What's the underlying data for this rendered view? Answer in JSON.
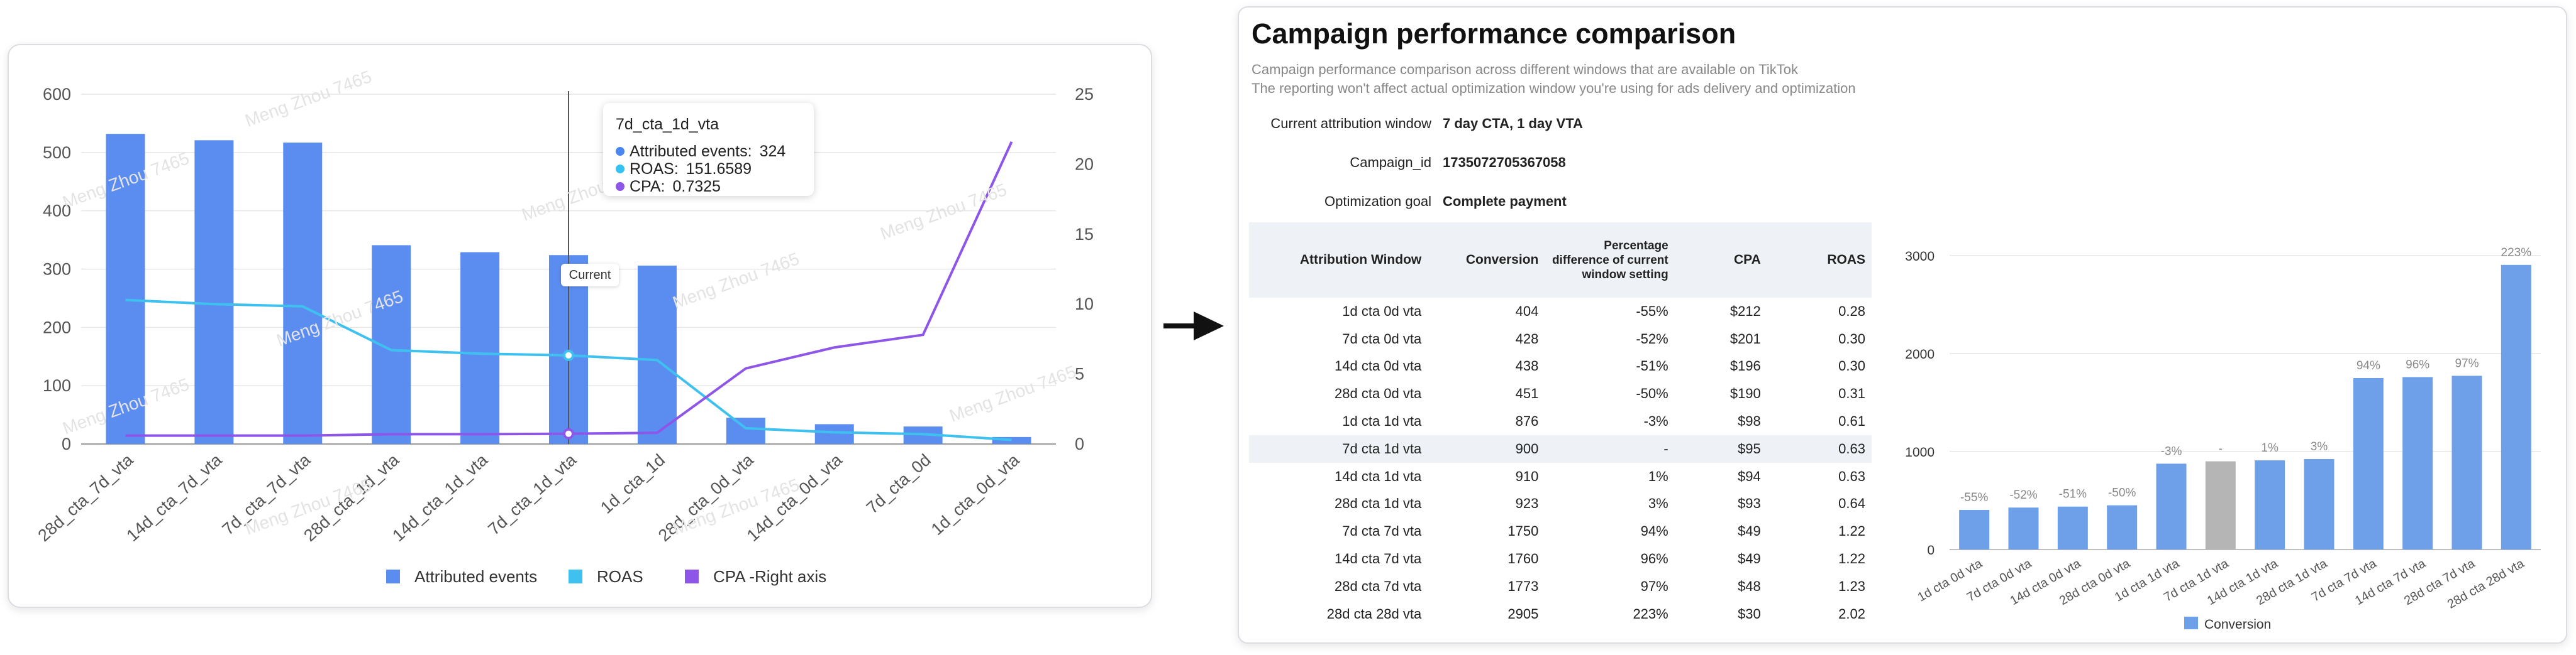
{
  "left_chart": {
    "tooltip": {
      "title": "7d_cta_1d_vta",
      "rows": [
        {
          "label": "Attributed events:",
          "value": "324",
          "color": "#4a86f0"
        },
        {
          "label": "ROAS:",
          "value": "151.6589",
          "color": "#36c2f0"
        },
        {
          "label": "CPA:",
          "value": "0.7325",
          "color": "#8e56e8"
        }
      ]
    },
    "current_label": "Current",
    "watermark": "Meng Zhou 7465",
    "legend": {
      "attributed": "Attributed events",
      "roas": "ROAS",
      "cpa": "CPA -Right axis"
    }
  },
  "right_panel": {
    "title": "Campaign performance comparison",
    "subtitle_line1": "Campaign performance comparison across different windows that are available on TikTok",
    "subtitle_line2": "The reporting won't affect actual optimization window you're using for ads delivery and optimization",
    "current_window_label": "Current attribution window",
    "current_window_value": "7 day CTA, 1 day VTA",
    "campaign_id_label": "Campaign_id",
    "campaign_id_value": "1735072705367058",
    "goal_label": "Optimization goal",
    "goal_value": "Complete payment",
    "table": {
      "headers": [
        "Attribution Window",
        "Conversion",
        "Percentage difference of current window setting",
        "CPA",
        "ROAS"
      ],
      "rows": [
        [
          "1d cta 0d vta",
          "404",
          "-55%",
          "$212",
          "0.28"
        ],
        [
          "7d cta 0d vta",
          "428",
          "-52%",
          "$201",
          "0.30"
        ],
        [
          "14d cta 0d vta",
          "438",
          "-51%",
          "$196",
          "0.30"
        ],
        [
          "28d cta 0d vta",
          "451",
          "-50%",
          "$190",
          "0.31"
        ],
        [
          "1d cta 1d vta",
          "876",
          "-3%",
          "$98",
          "0.61"
        ],
        [
          "7d cta 1d vta",
          "900",
          "-",
          "$95",
          "0.63"
        ],
        [
          "14d cta 1d vta",
          "910",
          "1%",
          "$94",
          "0.63"
        ],
        [
          "28d cta 1d vta",
          "923",
          "3%",
          "$93",
          "0.64"
        ],
        [
          "7d cta 7d vta",
          "1750",
          "94%",
          "$49",
          "1.22"
        ],
        [
          "14d cta 7d vta",
          "1760",
          "96%",
          "$49",
          "1.22"
        ],
        [
          "28d cta 7d vta",
          "1773",
          "97%",
          "$48",
          "1.23"
        ],
        [
          "28d cta 28d vta",
          "2905",
          "223%",
          "$30",
          "2.02"
        ]
      ]
    }
  },
  "chart_data": [
    {
      "type": "bar",
      "categories": [
        "28d_cta_7d_vta",
        "14d_cta_7d_vta",
        "7d_cta_7d_vta",
        "28d_cta_1d_vta",
        "14d_cta_1d_vta",
        "7d_cta_1d_vta",
        "1d_cta_1d",
        "28d_cta_0d_vta",
        "14d_cta_0d_vta",
        "7d_cta_0d",
        "1d_cta_0d_vta"
      ],
      "series": [
        {
          "name": "Attributed events",
          "values": [
            532,
            521,
            517,
            341,
            329,
            324,
            306,
            45,
            34,
            30,
            12
          ],
          "axis": "left",
          "kind": "bar",
          "color": "#5b8df0"
        },
        {
          "name": "ROAS",
          "values": [
            247,
            240,
            236,
            161,
            155,
            152,
            144,
            27,
            20,
            17,
            7
          ],
          "axis": "left",
          "kind": "line",
          "color": "#3fc1f0"
        },
        {
          "name": "CPA -Right axis",
          "values": [
            0.6,
            0.6,
            0.6,
            0.7,
            0.7,
            0.7325,
            0.8,
            5.4,
            6.9,
            7.8,
            21.6
          ],
          "axis": "right",
          "kind": "line",
          "color": "#8e56e8"
        }
      ],
      "ylim": [
        0,
        600
      ],
      "yticks": [
        0,
        100,
        200,
        300,
        400,
        500,
        600
      ],
      "y2lim": [
        0,
        25
      ],
      "y2ticks": [
        0,
        5,
        10,
        15,
        20,
        25
      ],
      "highlight_index": 5,
      "grid": true,
      "legend": "bottom"
    },
    {
      "type": "bar",
      "categories": [
        "1d cta 0d vta",
        "7d cta 0d vta",
        "14d cta 0d vta",
        "28d cta 0d vta",
        "1d cta 1d vta",
        "7d cta 1d vta",
        "14d cta 1d vta",
        "28d cta 1d vta",
        "7d cta 7d vta",
        "14d cta 7d vta",
        "28d cta 7d vta",
        "28d cta 28d vta"
      ],
      "series": [
        {
          "name": "Conversion",
          "values": [
            404,
            428,
            438,
            451,
            876,
            900,
            910,
            923,
            1750,
            1760,
            1773,
            2905
          ],
          "color": "#6ea0ea"
        }
      ],
      "data_labels": [
        "-55%",
        "-52%",
        "-51%",
        "-50%",
        "-3%",
        "-",
        "1%",
        "3%",
        "94%",
        "96%",
        "97%",
        "223%"
      ],
      "highlight_index": 5,
      "highlight_color": "#b5b5b5",
      "ylim": [
        0,
        3000
      ],
      "yticks": [
        0,
        1000,
        2000,
        3000
      ],
      "grid": true,
      "legend": "bottom"
    }
  ]
}
